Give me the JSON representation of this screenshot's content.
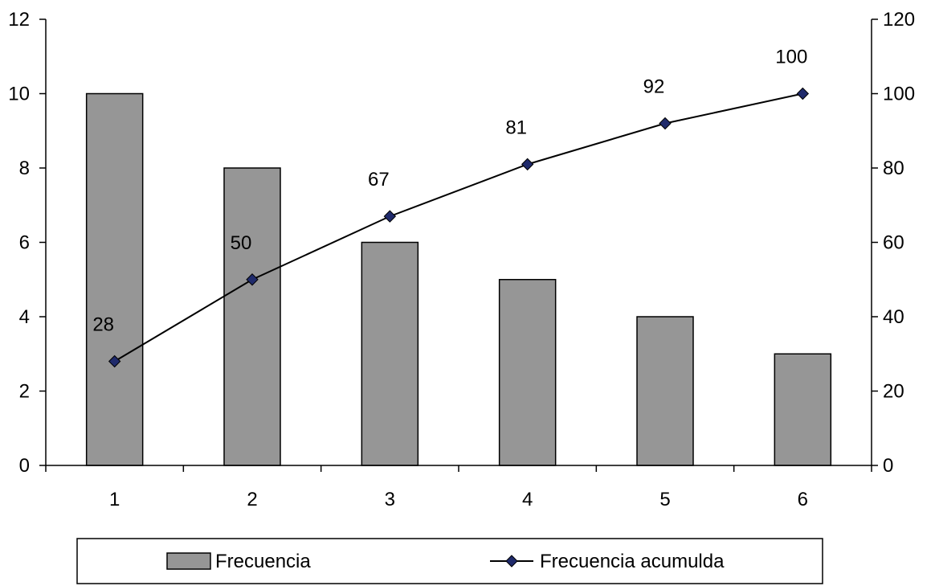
{
  "chart_data": {
    "type": "bar",
    "categories": [
      "1",
      "2",
      "3",
      "4",
      "5",
      "6"
    ],
    "series": [
      {
        "name": "Frecuencia",
        "type": "bar",
        "axis": "left",
        "values": [
          10,
          8,
          6,
          5,
          4,
          3
        ],
        "color": "#969696"
      },
      {
        "name": "Frecuencia acumulda",
        "type": "line",
        "axis": "right",
        "values": [
          28,
          50,
          67,
          81,
          92,
          100
        ],
        "data_labels": [
          "28",
          "50",
          "67",
          "81",
          "92",
          "100"
        ],
        "color": "#000000",
        "marker_color": "#1f2a6b"
      }
    ],
    "left_axis": {
      "ylim": [
        0,
        12
      ],
      "ticks": [
        0,
        2,
        4,
        6,
        8,
        10,
        12
      ],
      "tick_labels": [
        "0",
        "2",
        "4",
        "6",
        "8",
        "10",
        "12"
      ]
    },
    "right_axis": {
      "ylim": [
        0,
        120
      ],
      "ticks": [
        0,
        20,
        40,
        60,
        80,
        100,
        120
      ],
      "tick_labels": [
        "0",
        "20",
        "40",
        "60",
        "80",
        "100",
        "120"
      ]
    },
    "title": "",
    "xlabel": "",
    "ylabel": "",
    "grid": false,
    "legend_position": "bottom"
  }
}
